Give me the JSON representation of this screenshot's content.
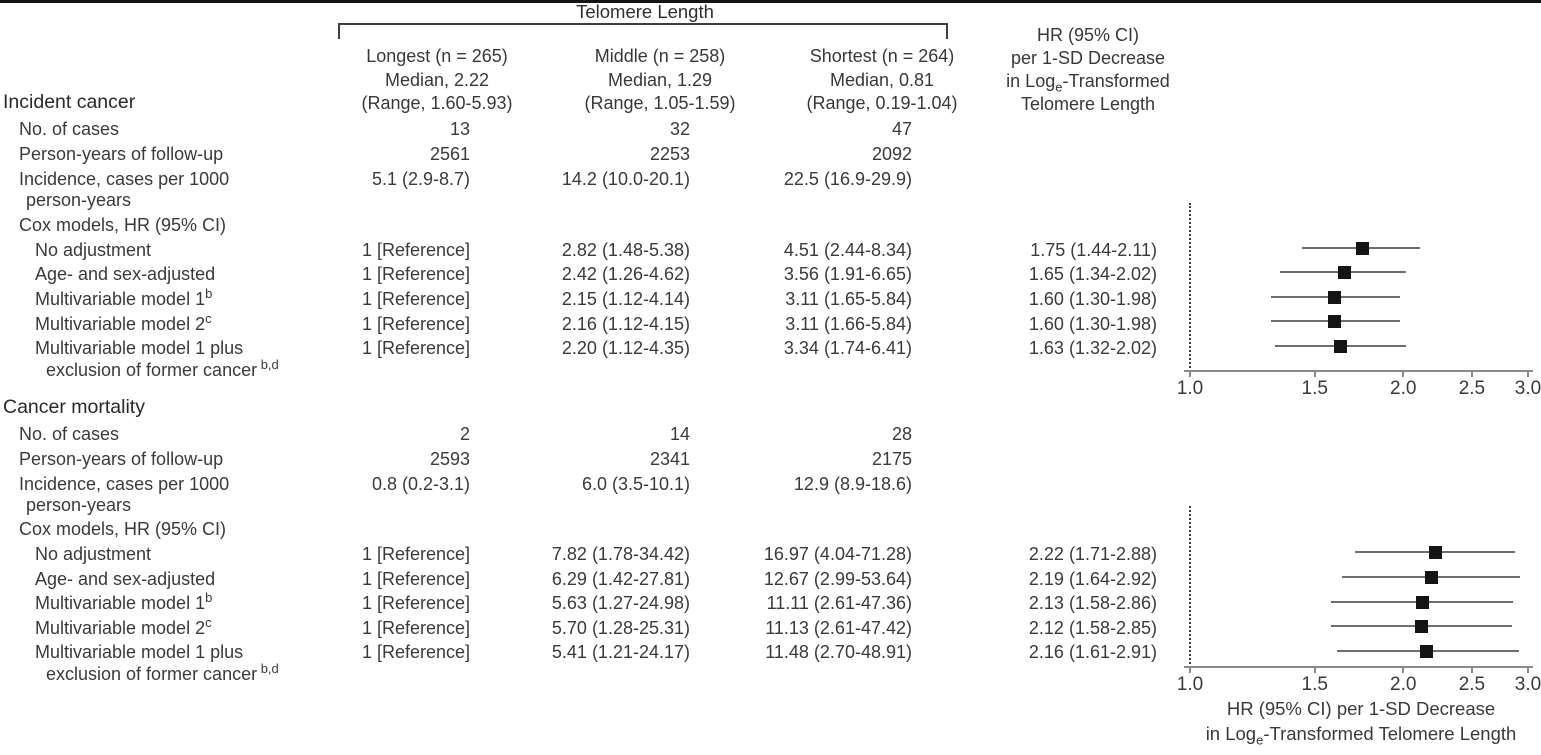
{
  "figure": {
    "spanner_label": "Telomere Length",
    "tl_columns": [
      {
        "title": "Longest (n = 265)",
        "median": "Median, 2.22",
        "range": "(Range, 1.60-5.93)"
      },
      {
        "title": "Middle (n = 258)",
        "median": "Median, 1.29",
        "range": "(Range, 1.05-1.59)"
      },
      {
        "title": "Shortest (n = 264)",
        "median": "Median, 0.81",
        "range": "(Range, 0.19-1.04)"
      }
    ],
    "hr_header": {
      "line1": "HR (95% CI)",
      "line2": "per 1-SD Decrease",
      "line3_pre": "in Log",
      "line3_sub": "e",
      "line3_post": "-Transformed",
      "line4": "Telomere Length"
    }
  },
  "sections": [
    {
      "title": "Incident cancer",
      "rows": [
        {
          "label": "No. of cases",
          "v1": "13",
          "v2": "32",
          "v3": "47"
        },
        {
          "label": "Person-years of follow-up",
          "v1": "2561",
          "v2": "2253",
          "v3": "2092"
        },
        {
          "label": "Incidence, cases per 1000",
          "label2": "person-years",
          "v1": "5.1 (2.9-8.7)",
          "v2": "14.2 (10.0-20.1)",
          "v3": "22.5 (16.9-29.9)"
        },
        {
          "label": "Cox models, HR (95% CI)"
        },
        {
          "label": "No adjustment",
          "v1": "1 [Reference]",
          "v2": "2.82 (1.48-5.38)",
          "v3": "4.51 (2.44-8.34)",
          "hr": "1.75 (1.44-2.11)"
        },
        {
          "label": "Age- and sex-adjusted",
          "v1": "1 [Reference]",
          "v2": "2.42 (1.26-4.62)",
          "v3": "3.56 (1.91-6.65)",
          "hr": "1.65 (1.34-2.02)"
        },
        {
          "label": "Multivariable model 1",
          "label_sup": "b",
          "v1": "1 [Reference]",
          "v2": "2.15 (1.12-4.14)",
          "v3": "3.11 (1.65-5.84)",
          "hr": "1.60 (1.30-1.98)"
        },
        {
          "label": "Multivariable model 2",
          "label_sup": "c",
          "v1": "1 [Reference]",
          "v2": "2.16 (1.12-4.15)",
          "v3": "3.11 (1.66-5.84)",
          "hr": "1.60 (1.30-1.98)"
        },
        {
          "label": "Multivariable model 1 plus",
          "label2": "exclusion of former cancer",
          "label2_sup": "b,d",
          "v1": "1 [Reference]",
          "v2": "2.20 (1.12-4.35)",
          "v3": "3.34 (1.74-6.41)",
          "hr": "1.63 (1.32-2.02)"
        }
      ]
    },
    {
      "title": "Cancer mortality",
      "rows": [
        {
          "label": "No. of cases",
          "v1": "2",
          "v2": "14",
          "v3": "28"
        },
        {
          "label": "Person-years of follow-up",
          "v1": "2593",
          "v2": "2341",
          "v3": "2175"
        },
        {
          "label": "Incidence, cases per 1000",
          "label2": "person-years",
          "v1": "0.8 (0.2-3.1)",
          "v2": "6.0 (3.5-10.1)",
          "v3": "12.9 (8.9-18.6)"
        },
        {
          "label": "Cox models, HR (95% CI)"
        },
        {
          "label": "No adjustment",
          "v1": "1 [Reference]",
          "v2": "7.82 (1.78-34.42)",
          "v3": "16.97 (4.04-71.28)",
          "hr": "2.22 (1.71-2.88)"
        },
        {
          "label": "Age- and sex-adjusted",
          "v1": "1 [Reference]",
          "v2": "6.29 (1.42-27.81)",
          "v3": "12.67 (2.99-53.64)",
          "hr": "2.19 (1.64-2.92)"
        },
        {
          "label": "Multivariable model 1",
          "label_sup": "b",
          "v1": "1 [Reference]",
          "v2": "5.63 (1.27-24.98)",
          "v3": "11.11 (2.61-47.36)",
          "hr": "2.13 (1.58-2.86)"
        },
        {
          "label": "Multivariable model 2",
          "label_sup": "c",
          "v1": "1 [Reference]",
          "v2": "5.70 (1.28-25.31)",
          "v3": "11.13 (2.61-47.42)",
          "hr": "2.12 (1.58-2.85)"
        },
        {
          "label": "Multivariable model 1 plus",
          "label2": "exclusion of former cancer",
          "label2_sup": "b,d",
          "v1": "1 [Reference]",
          "v2": "5.41 (1.21-24.17)",
          "v3": "11.48 (2.70-48.91)",
          "hr": "2.16 (1.61-2.91)"
        }
      ]
    }
  ],
  "chart_data": [
    {
      "type": "forest",
      "section": "Incident cancer",
      "x_scale": "log",
      "xlim": [
        1.0,
        3.0
      ],
      "ticks": [
        1.0,
        1.5,
        2.0,
        2.5,
        3.0
      ],
      "reference_line": 1.0,
      "series": [
        {
          "name": "No adjustment",
          "hr": 1.75,
          "ci": [
            1.44,
            2.11
          ]
        },
        {
          "name": "Age- and sex-adjusted",
          "hr": 1.65,
          "ci": [
            1.34,
            2.02
          ]
        },
        {
          "name": "Multivariable model 1",
          "hr": 1.6,
          "ci": [
            1.3,
            1.98
          ]
        },
        {
          "name": "Multivariable model 2",
          "hr": 1.6,
          "ci": [
            1.3,
            1.98
          ]
        },
        {
          "name": "Multivariable model 1 plus exclusion of former cancer",
          "hr": 1.63,
          "ci": [
            1.32,
            2.02
          ]
        }
      ]
    },
    {
      "type": "forest",
      "section": "Cancer mortality",
      "x_scale": "log",
      "xlim": [
        1.0,
        3.0
      ],
      "ticks": [
        1.0,
        1.5,
        2.0,
        2.5,
        3.0
      ],
      "reference_line": 1.0,
      "xlabel_line1": "HR (95% CI) per 1-SD Decrease",
      "xlabel_line2_pre": "in Log",
      "xlabel_line2_sub": "e",
      "xlabel_line2_post": "-Transformed Telomere Length",
      "series": [
        {
          "name": "No adjustment",
          "hr": 2.22,
          "ci": [
            1.71,
            2.88
          ]
        },
        {
          "name": "Age- and sex-adjusted",
          "hr": 2.19,
          "ci": [
            1.64,
            2.92
          ]
        },
        {
          "name": "Multivariable model 1",
          "hr": 2.13,
          "ci": [
            1.58,
            2.86
          ]
        },
        {
          "name": "Multivariable model 2",
          "hr": 2.12,
          "ci": [
            1.58,
            2.85
          ]
        },
        {
          "name": "Multivariable model 1 plus exclusion of former cancer",
          "hr": 2.16,
          "ci": [
            1.61,
            2.91
          ]
        }
      ]
    }
  ]
}
